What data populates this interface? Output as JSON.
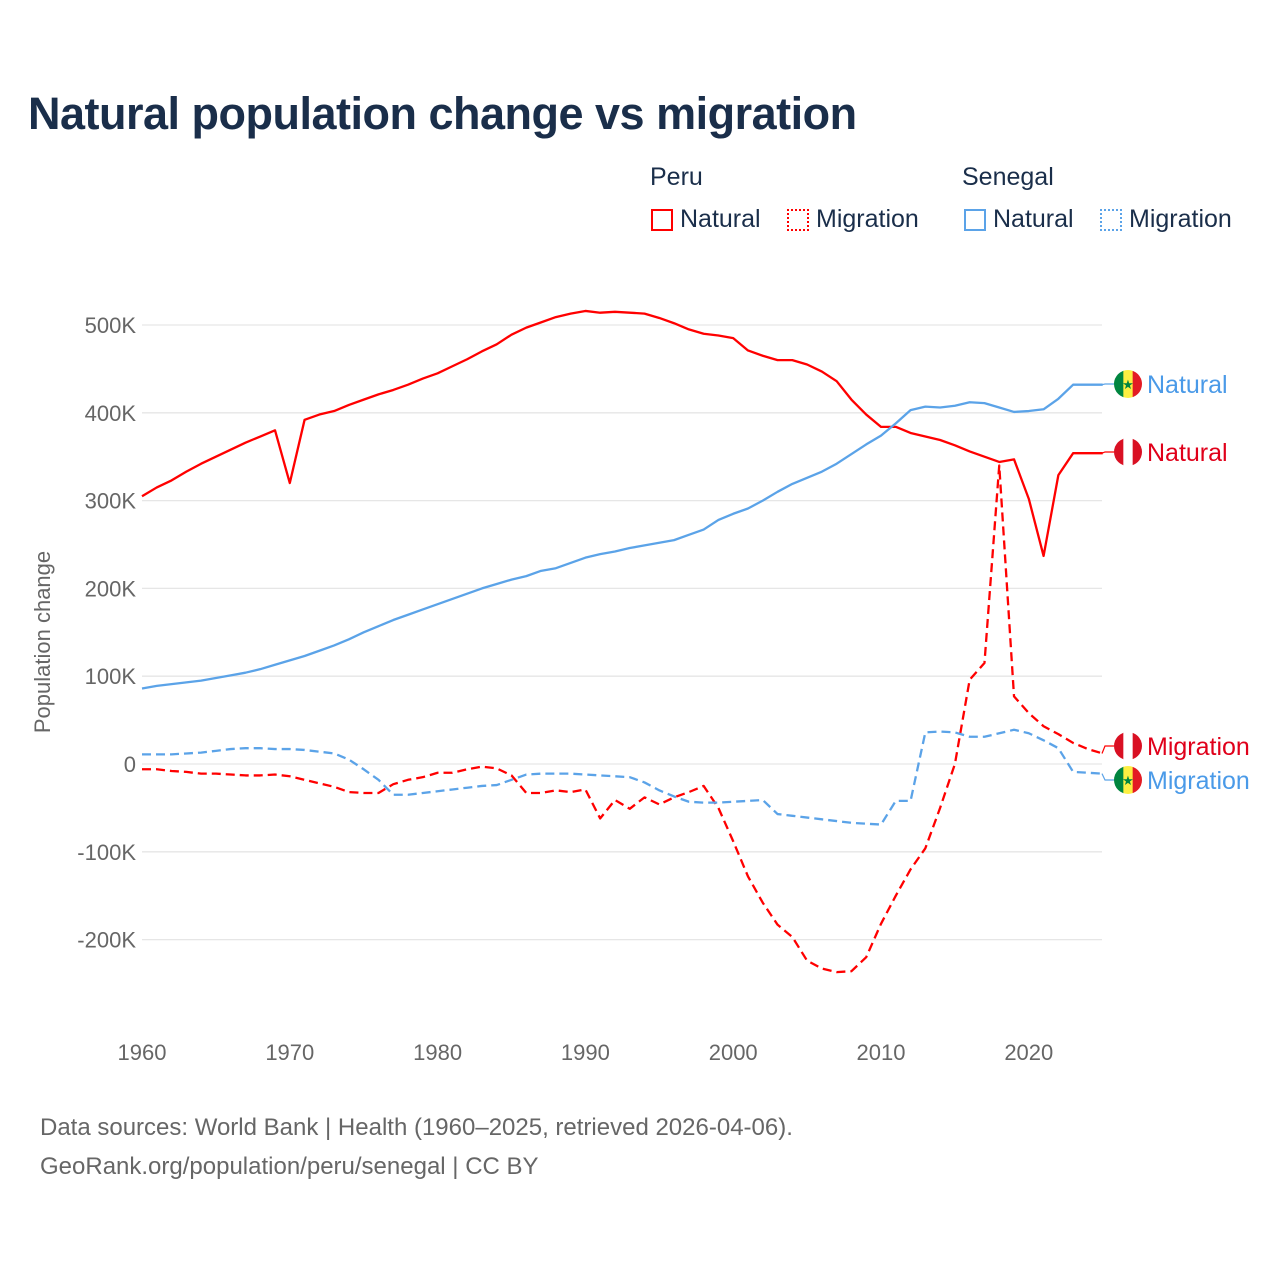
{
  "title": "Natural population change vs migration",
  "legend": {
    "groups": [
      {
        "name": "Peru",
        "items": [
          "Natural",
          "Migration"
        ]
      },
      {
        "name": "Senegal",
        "items": [
          "Natural",
          "Migration"
        ]
      }
    ]
  },
  "colors": {
    "peru": "#ff0000",
    "senegal": "#5ba3e8",
    "peru_label": "#e0001a",
    "senegal_label": "#4a9ae8"
  },
  "source": [
    "Data sources: World Bank | Health (1960–2025, retrieved 2026-04-06).",
    "GeoRank.org/population/peru/senegal | CC BY"
  ],
  "chart_data": {
    "type": "line",
    "title": "Natural population change vs migration",
    "xlabel": "",
    "ylabel": "Population change",
    "xlim": [
      1960,
      2025
    ],
    "ylim": [
      -280000,
      540000
    ],
    "xticks": [
      1960,
      1970,
      1980,
      1990,
      2000,
      2010,
      2020
    ],
    "xtick_labels": [
      "1960",
      "1970",
      "1980",
      "1990",
      "2000",
      "2010",
      "2020"
    ],
    "yticks": [
      -200000,
      -100000,
      0,
      100000,
      200000,
      300000,
      400000,
      500000
    ],
    "ytick_labels": [
      "-200K",
      "-100K",
      "0",
      "100K",
      "200K",
      "300K",
      "400K",
      "500K"
    ],
    "grid": true,
    "x_start": 1960,
    "series": [
      {
        "name": "Peru Natural",
        "country": "Peru",
        "kind": "Natural",
        "color": "#ff0000",
        "dash": false,
        "end_label": "Natural",
        "flag": "peru",
        "values": [
          305,
          315,
          323,
          333,
          342,
          350,
          358,
          366,
          373,
          380,
          320,
          392,
          398,
          402,
          409,
          415,
          421,
          426,
          432,
          439,
          445,
          453,
          461,
          470,
          478,
          489,
          497,
          503,
          509,
          513,
          516,
          514,
          515,
          514,
          513,
          508,
          502,
          495,
          490,
          488,
          485,
          471,
          465,
          460,
          460,
          455,
          447,
          436,
          415,
          398,
          384,
          384,
          377,
          373,
          369,
          363,
          356,
          350,
          344,
          347,
          302,
          237,
          329,
          354,
          354,
          354
        ]
      },
      {
        "name": "Peru Migration",
        "country": "Peru",
        "kind": "Migration",
        "color": "#ff0000",
        "dash": true,
        "end_label": "Migration",
        "flag": "peru",
        "values": [
          -6,
          -6,
          -8,
          -9,
          -11,
          -11,
          -12,
          -13,
          -13,
          -12,
          -14,
          -18,
          -22,
          -26,
          -32,
          -33,
          -33,
          -23,
          -18,
          -15,
          -10,
          -10,
          -6,
          -3,
          -5,
          -13,
          -33,
          -33,
          -30,
          -32,
          -29,
          -62,
          -41,
          -51,
          -38,
          -46,
          -38,
          -32,
          -25,
          -50,
          -88,
          -128,
          -158,
          -183,
          -197,
          -224,
          -233,
          -237,
          -236,
          -220,
          -182,
          -150,
          -120,
          -96,
          -50,
          0,
          96,
          115,
          340,
          77,
          58,
          43,
          34,
          24,
          17,
          12
        ]
      },
      {
        "name": "Senegal Natural",
        "country": "Senegal",
        "kind": "Natural",
        "color": "#5ba3e8",
        "dash": false,
        "end_label": "Natural",
        "flag": "senegal",
        "values": [
          86,
          89,
          91,
          93,
          95,
          98,
          101,
          104,
          108,
          113,
          118,
          123,
          129,
          135,
          142,
          150,
          157,
          164,
          170,
          176,
          182,
          188,
          194,
          200,
          205,
          210,
          214,
          220,
          223,
          229,
          235,
          239,
          242,
          246,
          249,
          252,
          255,
          261,
          267,
          278,
          285,
          291,
          300,
          310,
          319,
          326,
          333,
          342,
          353,
          364,
          374,
          388,
          403,
          407,
          406,
          408,
          412,
          411,
          406,
          401,
          402,
          404,
          416,
          432,
          432,
          432
        ]
      },
      {
        "name": "Senegal Migration",
        "country": "Senegal",
        "kind": "Migration",
        "color": "#5ba3e8",
        "dash": true,
        "end_label": "Migration",
        "flag": "senegal",
        "values": [
          11,
          11,
          11,
          12,
          13,
          15,
          17,
          18,
          18,
          17,
          17,
          16,
          14,
          12,
          5,
          -6,
          -18,
          -35,
          -35,
          -33,
          -31,
          -29,
          -27,
          -25,
          -24,
          -18,
          -12,
          -11,
          -11,
          -11,
          -12,
          -13,
          -14,
          -15,
          -21,
          -30,
          -37,
          -43,
          -44,
          -44,
          -43,
          -42,
          -41,
          -57,
          -59,
          -61,
          -63,
          -65,
          -67,
          -68,
          -69,
          -42,
          -42,
          36,
          37,
          36,
          31,
          31,
          35,
          39,
          35,
          27,
          18,
          -9,
          -10,
          -11
        ]
      }
    ],
    "value_unit": "thousands"
  }
}
